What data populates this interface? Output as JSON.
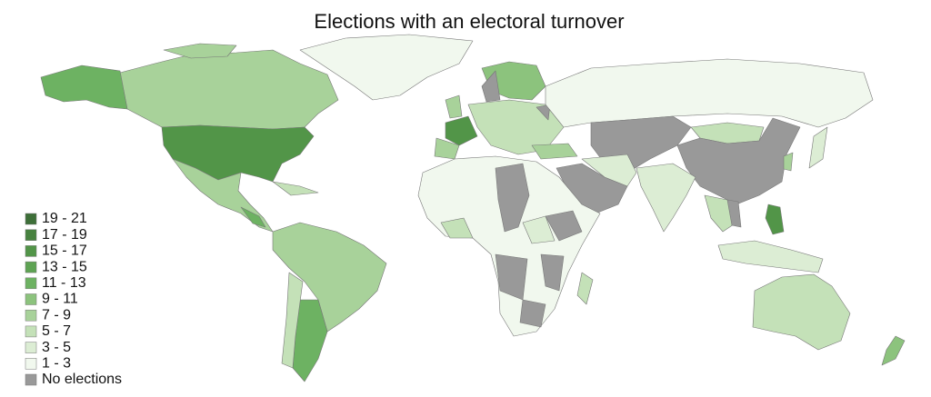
{
  "title": "Elections with an electoral turnover",
  "legend": [
    {
      "label": "19 - 21",
      "color": "#3d6f38"
    },
    {
      "label": "17 - 19",
      "color": "#47823f"
    },
    {
      "label": "15 - 17",
      "color": "#529548"
    },
    {
      "label": "13 - 15",
      "color": "#5ea353"
    },
    {
      "label": "11 - 13",
      "color": "#6db262"
    },
    {
      "label": "9 - 11",
      "color": "#8cc37d"
    },
    {
      "label": "7 - 9",
      "color": "#a8d29a"
    },
    {
      "label": "5 - 7",
      "color": "#c4e1b8"
    },
    {
      "label": "3 - 5",
      "color": "#dcedd4"
    },
    {
      "label": "1 - 3",
      "color": "#f1f8ee"
    },
    {
      "label": "No elections",
      "color": "#999999"
    }
  ]
}
